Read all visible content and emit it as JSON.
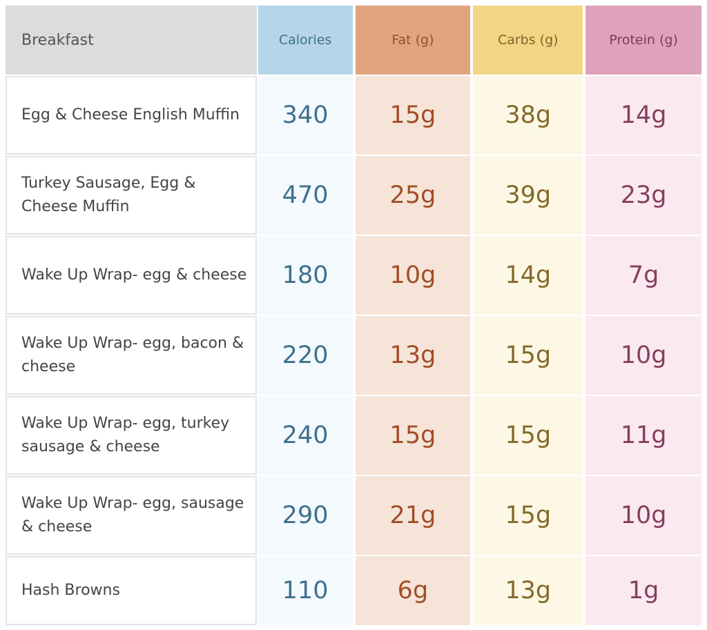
{
  "table": {
    "headers": {
      "name": "Breakfast",
      "calories": "Calories",
      "fat": "Fat (g)",
      "carbs": "Carbs (g)",
      "protein": "Protein (g)"
    },
    "rows": [
      {
        "name": "Egg & Cheese English Muffin",
        "calories": "340",
        "fat": "15g",
        "carbs": "38g",
        "protein": "14g"
      },
      {
        "name": "Turkey Sausage, Egg & Cheese Muffin",
        "calories": "470",
        "fat": "25g",
        "carbs": "39g",
        "protein": "23g"
      },
      {
        "name": "Wake Up Wrap- egg & cheese",
        "calories": "180",
        "fat": "10g",
        "carbs": "14g",
        "protein": "7g"
      },
      {
        "name": "Wake Up Wrap- egg, bacon & cheese",
        "calories": "220",
        "fat": "13g",
        "carbs": "15g",
        "protein": "10g"
      },
      {
        "name": "Wake Up Wrap- egg, turkey sausage & cheese",
        "calories": "240",
        "fat": "15g",
        "carbs": "15g",
        "protein": "11g"
      },
      {
        "name": "Wake Up Wrap- egg, sausage & cheese",
        "calories": "290",
        "fat": "21g",
        "carbs": "15g",
        "protein": "10g"
      },
      {
        "name": "Hash Browns",
        "calories": "110",
        "fat": "6g",
        "carbs": "13g",
        "protein": "1g"
      }
    ]
  },
  "colors": {
    "calories": "#3f6f8e",
    "fat": "#a04f25",
    "carbs": "#84692a",
    "protein": "#84405f"
  }
}
